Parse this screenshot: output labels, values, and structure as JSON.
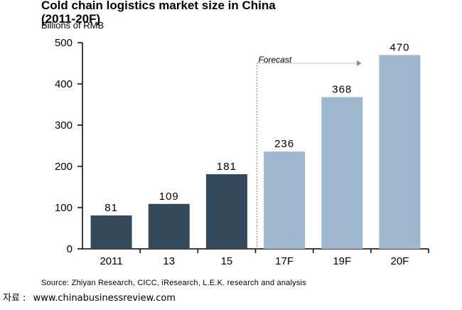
{
  "chart_data": {
    "type": "bar",
    "title_line1": "Cold chain logistics market size in China",
    "title_line2": "(2011-20F)",
    "ylabel": "Billions of RMB",
    "categories": [
      "2011",
      "13",
      "15",
      "17F",
      "19F",
      "20F"
    ],
    "values": [
      81,
      109,
      181,
      236,
      368,
      470
    ],
    "forecast": [
      false,
      false,
      false,
      true,
      true,
      true
    ],
    "forecast_label": "Forecast",
    "ylim": [
      0,
      500
    ],
    "yticks": [
      0,
      100,
      200,
      300,
      400,
      500
    ],
    "grid": false,
    "legend": "none",
    "colors": {
      "actual": "#34495a",
      "forecast": "#9fb8cf"
    }
  },
  "source": "Source:  Zhiyan Research, CICC, iResearch, L.E.K. research and analysis",
  "credit": {
    "label": "자료 :",
    "url": "www.chinabusinessreview.com"
  }
}
